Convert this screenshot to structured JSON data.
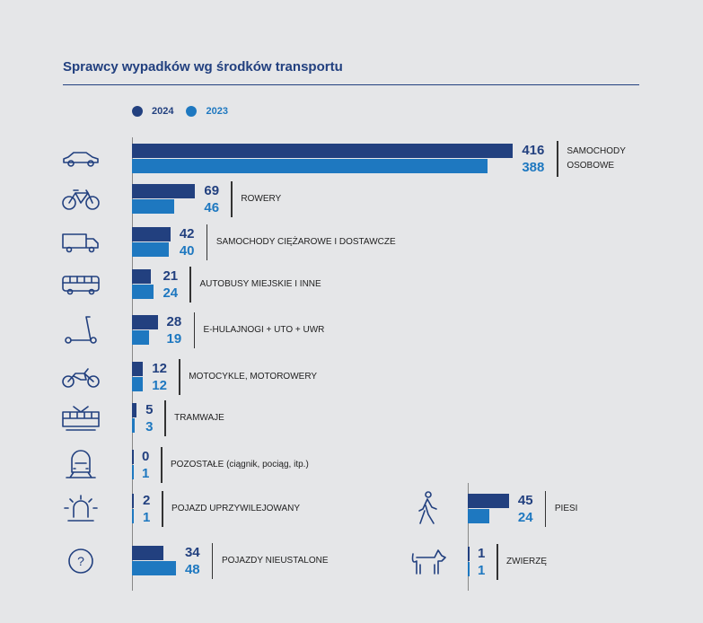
{
  "colors": {
    "y2024": "#22407f",
    "y2023": "#1e78c0"
  },
  "chart_data": {
    "type": "bar",
    "title": "Sprawcy wypadków wg środków transportu",
    "legend": [
      {
        "name": "2024",
        "color": "#22407f"
      },
      {
        "name": "2023",
        "color": "#1e78c0"
      }
    ],
    "series": [
      {
        "name": "2024",
        "values": [
          416,
          69,
          42,
          21,
          28,
          12,
          5,
          0,
          2,
          34,
          45,
          1
        ]
      },
      {
        "name": "2023",
        "values": [
          388,
          46,
          40,
          24,
          19,
          12,
          3,
          1,
          1,
          48,
          24,
          1
        ]
      }
    ],
    "categories": [
      {
        "label": [
          "SAMOCHODY",
          "OSOBOWE"
        ],
        "icon": "car-icon"
      },
      {
        "label": [
          "ROWERY"
        ],
        "icon": "bicycle-icon"
      },
      {
        "label": [
          "SAMOCHODY CIĘŻAROWE I DOSTAWCZE"
        ],
        "icon": "truck-icon"
      },
      {
        "label": [
          "AUTOBUSY MIEJSKIE I INNE"
        ],
        "icon": "bus-icon"
      },
      {
        "label": [
          "E-HULAJNOGI + UTO + UWR"
        ],
        "icon": "scooter-icon"
      },
      {
        "label": [
          "MOTOCYKLE, MOTOROWERY"
        ],
        "icon": "motorcycle-icon"
      },
      {
        "label": [
          "TRAMWAJE"
        ],
        "icon": "tram-icon"
      },
      {
        "label": [
          "POZOSTAŁE (ciągnik, pociąg, itp.)"
        ],
        "icon": "train-icon"
      },
      {
        "label": [
          "POJAZD UPRZYWILEJOWANY"
        ],
        "icon": "siren-icon"
      },
      {
        "label": [
          "POJAZDY NIEUSTALONE"
        ],
        "icon": "question-icon"
      },
      {
        "label": [
          "PIESI"
        ],
        "icon": "pedestrian-icon"
      },
      {
        "label": [
          "ZWIERZĘ"
        ],
        "icon": "dog-icon"
      }
    ]
  }
}
